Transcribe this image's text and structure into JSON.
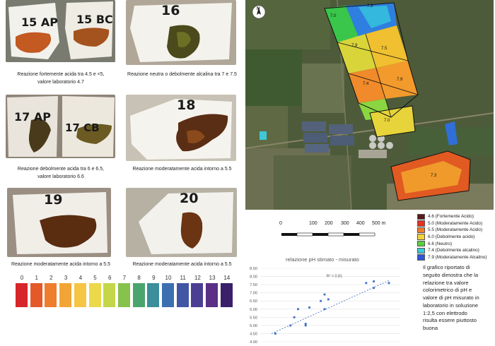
{
  "samples": [
    {
      "labels": [
        "15 AP",
        "15 BC"
      ],
      "caption_lines": [
        "Reazione fortemente acida tra 4.5 e <5,",
        "valore laboratorio 4.7"
      ]
    },
    {
      "labels": [
        "16"
      ],
      "caption_lines": [
        "Reazione neutra o debolmente alcalina tra 7 e 7.5"
      ]
    },
    {
      "labels": [
        "17 AP",
        "17 CB"
      ],
      "caption_lines": [
        "Reazione debolmente acida tra 6 e 6.5,",
        "valore laboratorio 6.6"
      ]
    },
    {
      "labels": [
        "18"
      ],
      "caption_lines": [
        "Reazione moderatamente acida intorno a 5.5"
      ]
    },
    {
      "labels": [
        "19"
      ],
      "caption_lines": [
        "Reazione moderatamente acida intorno a 5.5"
      ]
    },
    {
      "labels": [
        "20"
      ],
      "caption_lines": [
        "Reazione moderatamente acida intorno a 5.5"
      ]
    }
  ],
  "ph_scale": {
    "numbers": [
      "0",
      "1",
      "2",
      "3",
      "4",
      "5",
      "6",
      "7",
      "8",
      "9",
      "10",
      "11",
      "12",
      "13",
      "14"
    ],
    "colors": [
      "#d7262b",
      "#e4592a",
      "#ee7d2d",
      "#f2a436",
      "#f6c544",
      "#ecd94a",
      "#c4d64a",
      "#86c24c",
      "#4aa56c",
      "#3b8e9a",
      "#3c6fb0",
      "#4157a4",
      "#4a3f93",
      "#5a2f86",
      "#3b1f6a"
    ]
  },
  "map": {
    "compass": "N",
    "field_labels": [
      "7.0",
      "7.3",
      "7.9",
      "7.5",
      "7.4",
      "7.9",
      "7.0",
      "7.3"
    ],
    "scale_labels": [
      "0",
      "100",
      "200",
      "300",
      "400",
      "500 m"
    ],
    "legend": [
      {
        "color": "#5a1a1a",
        "label": "4.6 (Fortemente Acido)"
      },
      {
        "color": "#e53222",
        "label": "5.0 (Moderatamente Acido)"
      },
      {
        "color": "#f07c2a",
        "label": "5.5 (Moderatamente Acido)"
      },
      {
        "color": "#f6d23a",
        "label": "6.0 (Debolmente acido)"
      },
      {
        "color": "#58d03c",
        "label": "6.6 (Neutro)"
      },
      {
        "color": "#3ec8d8",
        "label": "7.4 (Debolmente alcalino)"
      },
      {
        "color": "#2f55d6",
        "label": "7.9 (Moderatamente Alcalino)"
      }
    ]
  },
  "chart_data": {
    "type": "scatter",
    "title": "relazione pH stimato - misurato",
    "ylim": [
      4.0,
      8.5
    ],
    "yticks": [
      "8.50",
      "8.00",
      "7.50",
      "7.00",
      "6.50",
      "6.00",
      "5.50",
      "5.00",
      "4.50",
      "4.00"
    ],
    "annotation": "R² = 0.81",
    "points": [
      [
        4.6,
        4.5
      ],
      [
        5.0,
        5.0
      ],
      [
        5.1,
        5.5
      ],
      [
        5.2,
        6.0
      ],
      [
        5.4,
        5.1
      ],
      [
        5.4,
        5.0
      ],
      [
        5.5,
        6.1
      ],
      [
        5.8,
        6.5
      ],
      [
        5.9,
        6.0
      ],
      [
        5.9,
        6.9
      ],
      [
        6.0,
        6.6
      ],
      [
        7.0,
        7.6
      ],
      [
        7.2,
        7.7
      ],
      [
        7.2,
        7.3
      ],
      [
        7.6,
        7.6
      ]
    ],
    "xlim": [
      4.2,
      7.9
    ],
    "trend": [
      [
        4.5,
        4.5
      ],
      [
        7.6,
        7.75
      ]
    ]
  },
  "note_lines": [
    "Il  grafico riportato di",
    "seguito dimostra che la",
    "relazione tra valore",
    "colorimetrico di pH e",
    "valore di pH misurato in",
    "laboratorio in soluzione",
    "1:2,5 con elettrodo",
    "risulta essere piuttosto",
    "buona"
  ]
}
